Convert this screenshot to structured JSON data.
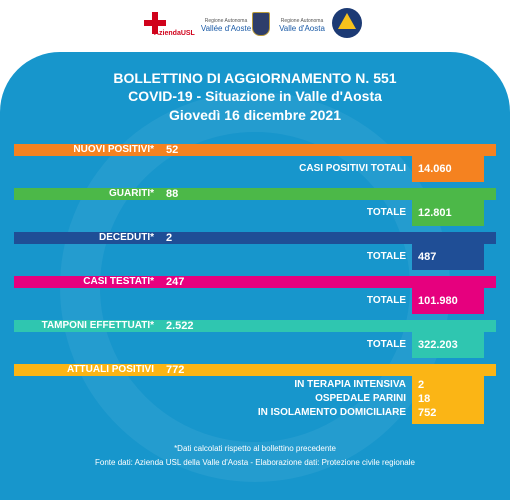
{
  "header": {
    "logo_usl_text": "AziendaUSL",
    "region_small_1": "Regione Autonoma",
    "region_big_1": "Vallée d'Aoste",
    "region_small_2": "Regione Autonoma",
    "region_big_2": "Valle d'Aosta"
  },
  "title": {
    "line1": "BOLLETTINO DI AGGIORNAMENTO N. 551",
    "line2": "COVID-19 - Situazione in Valle d'Aosta",
    "line3": "Giovedì 16 dicembre 2021"
  },
  "colors": {
    "panel": "#1796cc",
    "orange": "#f58220",
    "green": "#4cb848",
    "navy": "#1f4e96",
    "magenta": "#e6007e",
    "teal": "#2fc6b0",
    "yellow": "#fbb515"
  },
  "stats": {
    "nuovi_positivi": {
      "label": "NUOVI POSITIVI*",
      "value": "52",
      "total_label": "CASI POSITIVI TOTALI",
      "total_value": "14.060"
    },
    "guariti": {
      "label": "GUARITI*",
      "value": "88",
      "total_label": "TOTALE",
      "total_value": "12.801"
    },
    "deceduti": {
      "label": "DECEDUTI*",
      "value": "2",
      "total_label": "TOTALE",
      "total_value": "487"
    },
    "casi_testati": {
      "label": "CASI TESTATI*",
      "value": "247",
      "total_label": "TOTALE",
      "total_value": "101.980"
    },
    "tamponi": {
      "label": "TAMPONI EFFETTUATI*",
      "value": "2.522",
      "total_label": "TOTALE",
      "total_value": "322.203"
    },
    "attuali_positivi": {
      "label": "ATTUALI POSITIVI",
      "value": "772",
      "breakdown": [
        {
          "label": "IN TERAPIA INTENSIVA",
          "value": "2"
        },
        {
          "label": "OSPEDALE PARINI",
          "value": "18"
        },
        {
          "label": "IN ISOLAMENTO DOMICILIARE",
          "value": "752"
        }
      ]
    }
  },
  "footer": {
    "note": "*Dati calcolati rispetto al bollettino precedente",
    "source": "Fonte dati: Azienda USL della Valle d'Aosta - Elaborazione dati: Protezione civile regionale"
  }
}
